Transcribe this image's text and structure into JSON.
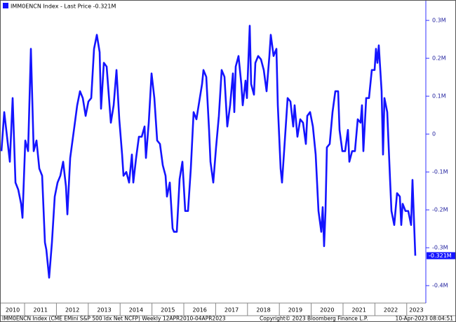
{
  "chart_data": {
    "type": "line",
    "legend_location": "upper left",
    "grid": false,
    "series": [
      {
        "name": "IMM0ENCN Index - Last Price -0.321M",
        "color": "#1414ff",
        "x": [
          2010.273,
          2010.361,
          2010.449,
          2010.537,
          2010.625,
          2010.714,
          2010.802,
          2010.89,
          2010.934,
          2011.022,
          2011.11,
          2011.198,
          2011.286,
          2011.374,
          2011.462,
          2011.551,
          2011.639,
          2011.683,
          2011.771,
          2011.859,
          2011.947,
          2012.035,
          2012.123,
          2012.211,
          2012.299,
          2012.344,
          2012.432,
          2012.564,
          2012.652,
          2012.74,
          2012.828,
          2012.917,
          2013.005,
          2013.093,
          2013.181,
          2013.269,
          2013.357,
          2013.401,
          2013.489,
          2013.577,
          2013.709,
          2013.797,
          2013.886,
          2013.974,
          2014.062,
          2014.106,
          2014.194,
          2014.282,
          2014.37,
          2014.414,
          2014.502,
          2014.59,
          2014.679,
          2014.767,
          2014.811,
          2014.899,
          2014.987,
          2015.075,
          2015.163,
          2015.251,
          2015.339,
          2015.427,
          2015.471,
          2015.56,
          2015.648,
          2015.692,
          2015.78,
          2015.868,
          2015.956,
          2016.044,
          2016.132,
          2016.22,
          2016.308,
          2016.396,
          2016.485,
          2016.573,
          2016.617,
          2016.705,
          2016.793,
          2016.837,
          2016.925,
          2017.013,
          2017.101,
          2017.189,
          2017.277,
          2017.365,
          2017.454,
          2017.542,
          2017.586,
          2017.63,
          2017.718,
          2017.806,
          2017.85,
          2017.938,
          2017.982,
          2018.07,
          2018.114,
          2018.203,
          2018.247,
          2018.335,
          2018.423,
          2018.511,
          2018.599,
          2018.687,
          2018.731,
          2018.819,
          2018.908,
          2018.952,
          2019.04,
          2019.084,
          2019.172,
          2019.26,
          2019.348,
          2019.436,
          2019.48,
          2019.568,
          2019.656,
          2019.744,
          2019.833,
          2019.877,
          2019.965,
          2020.053,
          2020.141,
          2020.229,
          2020.317,
          2020.361,
          2020.405,
          2020.449,
          2020.493,
          2020.581,
          2020.67,
          2020.758,
          2020.846,
          2020.89,
          2020.978,
          2021.066,
          2021.154,
          2021.198,
          2021.286,
          2021.374,
          2021.462,
          2021.55,
          2021.595,
          2021.639,
          2021.727,
          2021.815,
          2021.903,
          2021.991,
          2022.035,
          2022.079,
          2022.123,
          2022.211,
          2022.256,
          2022.3,
          2022.388,
          2022.476,
          2022.52,
          2022.608,
          2022.696,
          2022.784,
          2022.828,
          2022.872,
          2022.96,
          2023.048,
          2023.137,
          2023.181,
          2023.225,
          2023.269
        ],
        "values": [
          -0.045,
          0.058,
          -0.007,
          -0.073,
          0.095,
          -0.128,
          -0.147,
          -0.184,
          -0.221,
          -0.017,
          -0.045,
          0.225,
          -0.045,
          -0.017,
          -0.091,
          -0.11,
          -0.286,
          -0.305,
          -0.379,
          -0.286,
          -0.165,
          -0.128,
          -0.11,
          -0.073,
          -0.138,
          -0.212,
          -0.063,
          0.02,
          0.076,
          0.113,
          0.095,
          0.048,
          0.086,
          0.095,
          0.225,
          0.262,
          0.216,
          0.067,
          0.188,
          0.178,
          0.03,
          0.076,
          0.169,
          0.039,
          -0.054,
          -0.11,
          -0.1,
          -0.128,
          -0.054,
          -0.128,
          -0.063,
          -0.007,
          -0.007,
          0.02,
          -0.063,
          0.03,
          0.16,
          0.095,
          -0.017,
          -0.026,
          -0.082,
          -0.11,
          -0.165,
          -0.128,
          -0.249,
          -0.258,
          -0.258,
          -0.119,
          -0.073,
          -0.203,
          -0.203,
          -0.091,
          0.058,
          0.039,
          0.086,
          0.132,
          0.169,
          0.151,
          0.011,
          -0.073,
          -0.128,
          -0.035,
          0.048,
          0.169,
          0.151,
          0.02,
          0.076,
          0.16,
          0.058,
          0.178,
          0.206,
          0.132,
          0.076,
          0.141,
          0.095,
          0.286,
          0.132,
          0.104,
          0.188,
          0.206,
          0.197,
          0.169,
          0.113,
          0.206,
          0.262,
          0.206,
          0.225,
          0.076,
          -0.091,
          -0.128,
          -0.017,
          0.095,
          0.086,
          0.02,
          0.076,
          -0.007,
          0.039,
          0.03,
          -0.026,
          0.048,
          0.058,
          0.02,
          -0.054,
          -0.203,
          -0.258,
          -0.193,
          -0.296,
          -0.203,
          -0.035,
          -0.026,
          0.058,
          0.113,
          0.113,
          0.011,
          -0.045,
          -0.045,
          0.011,
          -0.073,
          -0.045,
          -0.045,
          0.039,
          0.03,
          0.076,
          -0.045,
          0.095,
          0.095,
          0.169,
          0.169,
          0.225,
          0.188,
          0.234,
          0.113,
          -0.054,
          0.095,
          0.058,
          -0.119,
          -0.203,
          -0.24,
          -0.156,
          -0.165,
          -0.24,
          -0.184,
          -0.203,
          -0.203,
          -0.24,
          -0.121,
          -0.221,
          -0.321
        ]
      }
    ],
    "last_price_label": "-0.321M",
    "xlim": [
      2010.25,
      2023.6
    ],
    "xticks": [
      2010,
      2011,
      2012,
      2013,
      2014,
      2015,
      2016,
      2017,
      2018,
      2019,
      2020,
      2021,
      2022,
      2023
    ],
    "ylim": [
      -0.446,
      0.352
    ],
    "yticks": [
      {
        "value": 0.3,
        "label": "0.3M"
      },
      {
        "value": 0.2,
        "label": "0.2M"
      },
      {
        "value": 0.1,
        "label": "0.1M"
      },
      {
        "value": 0,
        "label": "0"
      },
      {
        "value": -0.1,
        "label": "-0.1M"
      },
      {
        "value": -0.2,
        "label": "-0.2M"
      },
      {
        "value": -0.3,
        "label": "-0.3M"
      },
      {
        "value": -0.4,
        "label": "-0.4M"
      }
    ],
    "footer": [
      "IMM0ENCN Index (CME EMini S&P 500 Idx Net NCFP)  Weekly 12APR2010-04APR2023",
      "Copyright© 2023 Bloomberg Finance L.P.",
      "10-Apr-2023 08:04:51"
    ]
  }
}
